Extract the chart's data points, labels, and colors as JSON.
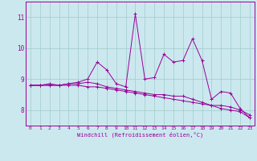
{
  "xlabel": "Windchill (Refroidissement éolien,°C)",
  "background_color": "#cbe8ef",
  "plot_bg_color": "#cbe8ef",
  "grid_color": "#a0ccc8",
  "line_color": "#990099",
  "x_values": [
    0,
    1,
    2,
    3,
    4,
    5,
    6,
    7,
    8,
    9,
    10,
    11,
    12,
    13,
    14,
    15,
    16,
    17,
    18,
    19,
    20,
    21,
    22,
    23
  ],
  "line1_y": [
    8.8,
    8.8,
    8.8,
    8.8,
    8.8,
    8.8,
    8.75,
    8.75,
    8.7,
    8.65,
    8.6,
    8.55,
    8.5,
    8.45,
    8.4,
    8.35,
    8.3,
    8.25,
    8.2,
    8.15,
    8.05,
    8.0,
    7.95,
    7.75
  ],
  "line2_y": [
    8.8,
    8.8,
    8.8,
    8.8,
    8.85,
    8.85,
    8.9,
    8.85,
    8.75,
    8.7,
    8.65,
    8.6,
    8.55,
    8.5,
    8.5,
    8.45,
    8.45,
    8.35,
    8.25,
    8.15,
    8.15,
    8.1,
    8.0,
    7.85
  ],
  "line3_y": [
    8.8,
    8.8,
    8.85,
    8.8,
    8.85,
    8.9,
    9.0,
    9.55,
    9.3,
    8.85,
    8.75,
    11.1,
    9.0,
    9.05,
    9.8,
    9.55,
    9.6,
    10.3,
    9.6,
    8.35,
    8.6,
    8.55,
    8.05,
    7.75
  ],
  "ylim": [
    7.5,
    11.5
  ],
  "xlim": [
    -0.5,
    23.5
  ],
  "yticks": [
    8,
    9,
    10,
    11
  ],
  "xticks": [
    0,
    1,
    2,
    3,
    4,
    5,
    6,
    7,
    8,
    9,
    10,
    11,
    12,
    13,
    14,
    15,
    16,
    17,
    18,
    19,
    20,
    21,
    22,
    23
  ]
}
